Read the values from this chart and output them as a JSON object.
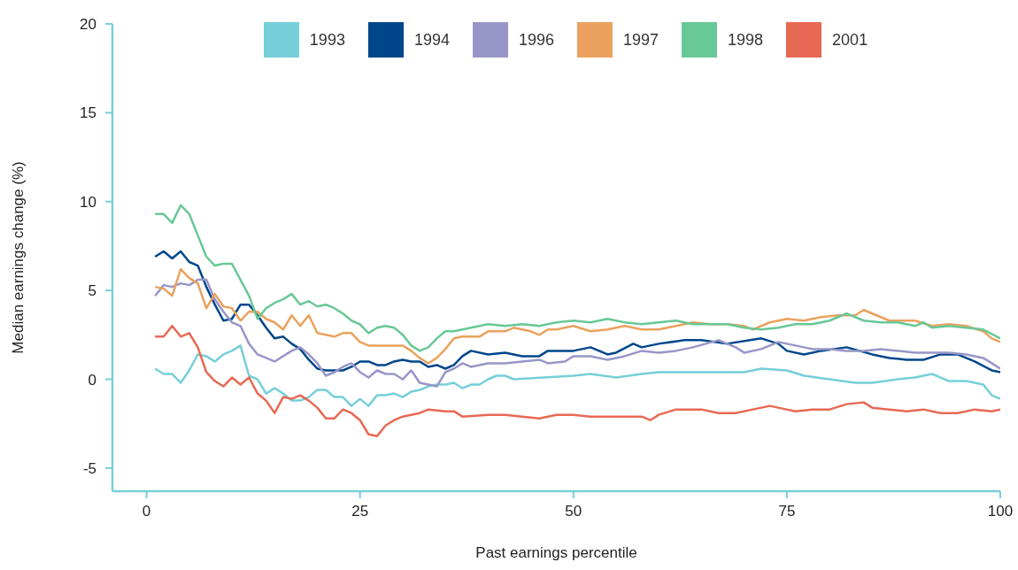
{
  "chart_data": {
    "type": "line",
    "xlabel": "Past earnings percentile",
    "ylabel": "Median earnings change (%)",
    "xlim": [
      -4,
      100
    ],
    "ylim": [
      -6.3,
      20
    ],
    "xticks": [
      0,
      25,
      50,
      75,
      100
    ],
    "yticks": [
      -5,
      0,
      5,
      10,
      15,
      20
    ],
    "grid": false,
    "legend": "top",
    "marker": "none",
    "line_style": "solid",
    "series": [
      {
        "name": "1993",
        "color": "#76cfd8",
        "x": [
          1,
          2,
          3,
          4,
          5,
          6,
          7,
          8,
          9,
          10,
          11,
          12,
          13,
          14,
          15,
          16,
          17,
          18,
          19,
          20,
          21,
          22,
          23,
          24,
          25,
          26,
          27,
          28,
          29,
          30,
          31,
          32,
          33,
          34,
          35,
          36,
          37,
          38,
          39,
          40,
          41,
          42,
          43,
          50,
          52,
          55,
          58,
          60,
          65,
          70,
          72,
          75,
          77,
          80,
          83,
          85,
          88,
          90,
          92,
          94,
          96,
          98,
          99,
          100
        ],
        "values": [
          0.6,
          0.3,
          0.3,
          -0.2,
          0.5,
          1.4,
          1.3,
          1.0,
          1.4,
          1.6,
          1.9,
          0.2,
          0.0,
          -0.8,
          -0.5,
          -0.8,
          -1.2,
          -1.2,
          -1.0,
          -0.6,
          -0.6,
          -1.0,
          -1.0,
          -1.5,
          -1.1,
          -1.5,
          -0.9,
          -0.9,
          -0.8,
          -1.0,
          -0.7,
          -0.6,
          -0.4,
          -0.3,
          -0.3,
          -0.2,
          -0.5,
          -0.3,
          -0.3,
          0.0,
          0.2,
          0.2,
          0.0,
          0.2,
          0.3,
          0.1,
          0.3,
          0.4,
          0.4,
          0.4,
          0.6,
          0.5,
          0.2,
          0.0,
          -0.2,
          -0.2,
          0.0,
          0.1,
          0.3,
          -0.1,
          -0.1,
          -0.3,
          -0.9,
          -1.1
        ]
      },
      {
        "name": "1994",
        "color": "#00468b",
        "x": [
          1,
          2,
          3,
          4,
          5,
          6,
          7,
          8,
          9,
          10,
          11,
          12,
          13,
          14,
          15,
          16,
          17,
          18,
          19,
          20,
          21,
          22,
          23,
          24,
          25,
          26,
          27,
          28,
          29,
          30,
          31,
          32,
          33,
          34,
          35,
          36,
          37,
          38,
          40,
          42,
          44,
          46,
          47,
          50,
          52,
          54,
          55,
          57,
          58,
          60,
          63,
          65,
          68,
          72,
          74,
          75,
          77,
          79,
          82,
          85,
          87,
          89,
          91,
          93,
          95,
          97,
          99,
          100
        ],
        "values": [
          6.9,
          7.2,
          6.8,
          7.2,
          6.6,
          6.4,
          5.2,
          4.2,
          3.3,
          3.4,
          4.2,
          4.2,
          3.6,
          2.9,
          2.3,
          2.4,
          2.0,
          1.7,
          1.1,
          0.6,
          0.5,
          0.5,
          0.5,
          0.7,
          1.0,
          1.0,
          0.8,
          0.8,
          1.0,
          1.1,
          1.0,
          1.0,
          0.7,
          0.8,
          0.6,
          0.8,
          1.3,
          1.6,
          1.4,
          1.5,
          1.3,
          1.3,
          1.6,
          1.6,
          1.8,
          1.4,
          1.5,
          2.0,
          1.8,
          2.0,
          2.2,
          2.2,
          2.0,
          2.3,
          2.0,
          1.6,
          1.4,
          1.6,
          1.8,
          1.4,
          1.2,
          1.1,
          1.1,
          1.4,
          1.4,
          1.0,
          0.5,
          0.4
        ]
      },
      {
        "name": "1996",
        "color": "#9896c8",
        "x": [
          1,
          2,
          3,
          4,
          5,
          6,
          7,
          8,
          9,
          10,
          11,
          12,
          13,
          14,
          15,
          16,
          17,
          18,
          19,
          20,
          21,
          22,
          23,
          24,
          25,
          26,
          27,
          28,
          29,
          30,
          31,
          32,
          33,
          34,
          35,
          36,
          37,
          38,
          40,
          42,
          44,
          46,
          47,
          49,
          50,
          52,
          54,
          56,
          58,
          60,
          62,
          64,
          67,
          69,
          70,
          72,
          74,
          76,
          78,
          80,
          82,
          84,
          86,
          88,
          90,
          92,
          94,
          96,
          98,
          100
        ],
        "values": [
          4.7,
          5.3,
          5.2,
          5.4,
          5.3,
          5.6,
          5.6,
          4.5,
          3.8,
          3.2,
          3.0,
          2.0,
          1.4,
          1.2,
          1.0,
          1.3,
          1.6,
          1.8,
          1.4,
          0.9,
          0.2,
          0.4,
          0.7,
          0.9,
          0.4,
          0.1,
          0.5,
          0.3,
          0.3,
          0.0,
          0.5,
          -0.2,
          -0.3,
          -0.4,
          0.4,
          0.6,
          0.9,
          0.7,
          0.9,
          0.9,
          1.0,
          1.1,
          0.9,
          1.0,
          1.3,
          1.3,
          1.1,
          1.3,
          1.6,
          1.5,
          1.6,
          1.8,
          2.2,
          1.8,
          1.5,
          1.7,
          2.1,
          1.9,
          1.7,
          1.7,
          1.6,
          1.6,
          1.7,
          1.6,
          1.5,
          1.5,
          1.5,
          1.4,
          1.2,
          0.6
        ]
      },
      {
        "name": "1997",
        "color": "#eaa25e",
        "x": [
          1,
          2,
          3,
          4,
          5,
          6,
          7,
          8,
          9,
          10,
          11,
          12,
          13,
          14,
          15,
          16,
          17,
          18,
          19,
          20,
          21,
          22,
          23,
          24,
          25,
          26,
          28,
          30,
          31,
          32,
          33,
          34,
          35,
          36,
          37,
          39,
          40,
          42,
          43,
          45,
          46,
          47,
          48,
          50,
          52,
          54,
          56,
          58,
          60,
          62,
          64,
          66,
          68,
          70,
          71,
          73,
          75,
          77,
          79,
          81,
          83,
          84,
          85,
          87,
          90,
          92,
          94,
          96,
          98,
          99,
          100
        ],
        "values": [
          5.2,
          5.1,
          4.7,
          6.2,
          5.7,
          5.4,
          4.0,
          4.8,
          4.1,
          4.0,
          3.3,
          3.8,
          3.8,
          3.4,
          3.2,
          2.8,
          3.6,
          3.0,
          3.6,
          2.6,
          2.5,
          2.4,
          2.6,
          2.6,
          2.1,
          1.9,
          1.9,
          1.9,
          1.6,
          1.2,
          0.9,
          1.2,
          1.7,
          2.3,
          2.4,
          2.4,
          2.7,
          2.7,
          2.9,
          2.7,
          2.5,
          2.8,
          2.8,
          3.0,
          2.7,
          2.8,
          3.0,
          2.8,
          2.8,
          3.0,
          3.2,
          3.1,
          3.1,
          3.0,
          2.8,
          3.2,
          3.4,
          3.3,
          3.5,
          3.6,
          3.6,
          3.9,
          3.7,
          3.3,
          3.3,
          3.0,
          3.1,
          3.0,
          2.7,
          2.3,
          2.1
        ]
      },
      {
        "name": "1998",
        "color": "#68c896",
        "x": [
          1,
          2,
          3,
          4,
          5,
          6,
          7,
          8,
          9,
          10,
          11,
          12,
          13,
          14,
          15,
          16,
          17,
          18,
          19,
          20,
          21,
          22,
          23,
          24,
          25,
          26,
          27,
          28,
          29,
          30,
          31,
          32,
          33,
          34,
          35,
          36,
          38,
          40,
          42,
          44,
          46,
          48,
          50,
          52,
          54,
          56,
          58,
          60,
          62,
          64,
          66,
          68,
          70,
          72,
          74,
          76,
          78,
          80,
          82,
          84,
          86,
          88,
          90,
          91,
          92,
          94,
          96,
          98,
          100
        ],
        "values": [
          9.3,
          9.3,
          8.8,
          9.8,
          9.3,
          8.1,
          6.9,
          6.4,
          6.5,
          6.5,
          5.6,
          4.7,
          3.4,
          4.0,
          4.3,
          4.5,
          4.8,
          4.2,
          4.4,
          4.1,
          4.2,
          4.0,
          3.7,
          3.3,
          3.1,
          2.6,
          2.9,
          3.0,
          2.9,
          2.5,
          1.9,
          1.6,
          1.8,
          2.3,
          2.7,
          2.7,
          2.9,
          3.1,
          3.0,
          3.1,
          3.0,
          3.2,
          3.3,
          3.2,
          3.4,
          3.2,
          3.1,
          3.2,
          3.3,
          3.1,
          3.1,
          3.1,
          2.9,
          2.8,
          2.9,
          3.1,
          3.1,
          3.3,
          3.7,
          3.3,
          3.2,
          3.2,
          3.0,
          3.2,
          2.9,
          3.0,
          2.9,
          2.8,
          2.3
        ]
      },
      {
        "name": "2001",
        "color": "#e86954",
        "x": [
          1,
          2,
          3,
          4,
          5,
          6,
          7,
          8,
          9,
          10,
          11,
          12,
          13,
          14,
          15,
          16,
          17,
          18,
          19,
          20,
          21,
          22,
          23,
          24,
          25,
          26,
          27,
          28,
          29,
          30,
          32,
          33,
          35,
          36,
          37,
          40,
          42,
          44,
          46,
          48,
          50,
          52,
          55,
          58,
          59,
          60,
          62,
          65,
          67,
          69,
          71,
          73,
          75,
          76,
          78,
          80,
          82,
          84,
          85,
          87,
          89,
          91,
          93,
          95,
          97,
          99,
          100
        ],
        "values": [
          2.4,
          2.4,
          3.0,
          2.4,
          2.6,
          1.8,
          0.4,
          -0.1,
          -0.4,
          0.1,
          -0.3,
          0.1,
          -0.8,
          -1.2,
          -1.9,
          -1.0,
          -1.1,
          -0.9,
          -1.2,
          -1.6,
          -2.2,
          -2.2,
          -1.7,
          -1.9,
          -2.3,
          -3.1,
          -3.2,
          -2.6,
          -2.3,
          -2.1,
          -1.9,
          -1.7,
          -1.8,
          -1.8,
          -2.1,
          -2.0,
          -2.0,
          -2.1,
          -2.2,
          -2.0,
          -2.0,
          -2.1,
          -2.1,
          -2.1,
          -2.3,
          -2.0,
          -1.7,
          -1.7,
          -1.9,
          -1.9,
          -1.7,
          -1.5,
          -1.7,
          -1.8,
          -1.7,
          -1.7,
          -1.4,
          -1.3,
          -1.6,
          -1.7,
          -1.8,
          -1.7,
          -1.9,
          -1.9,
          -1.7,
          -1.8,
          -1.7
        ]
      }
    ]
  }
}
